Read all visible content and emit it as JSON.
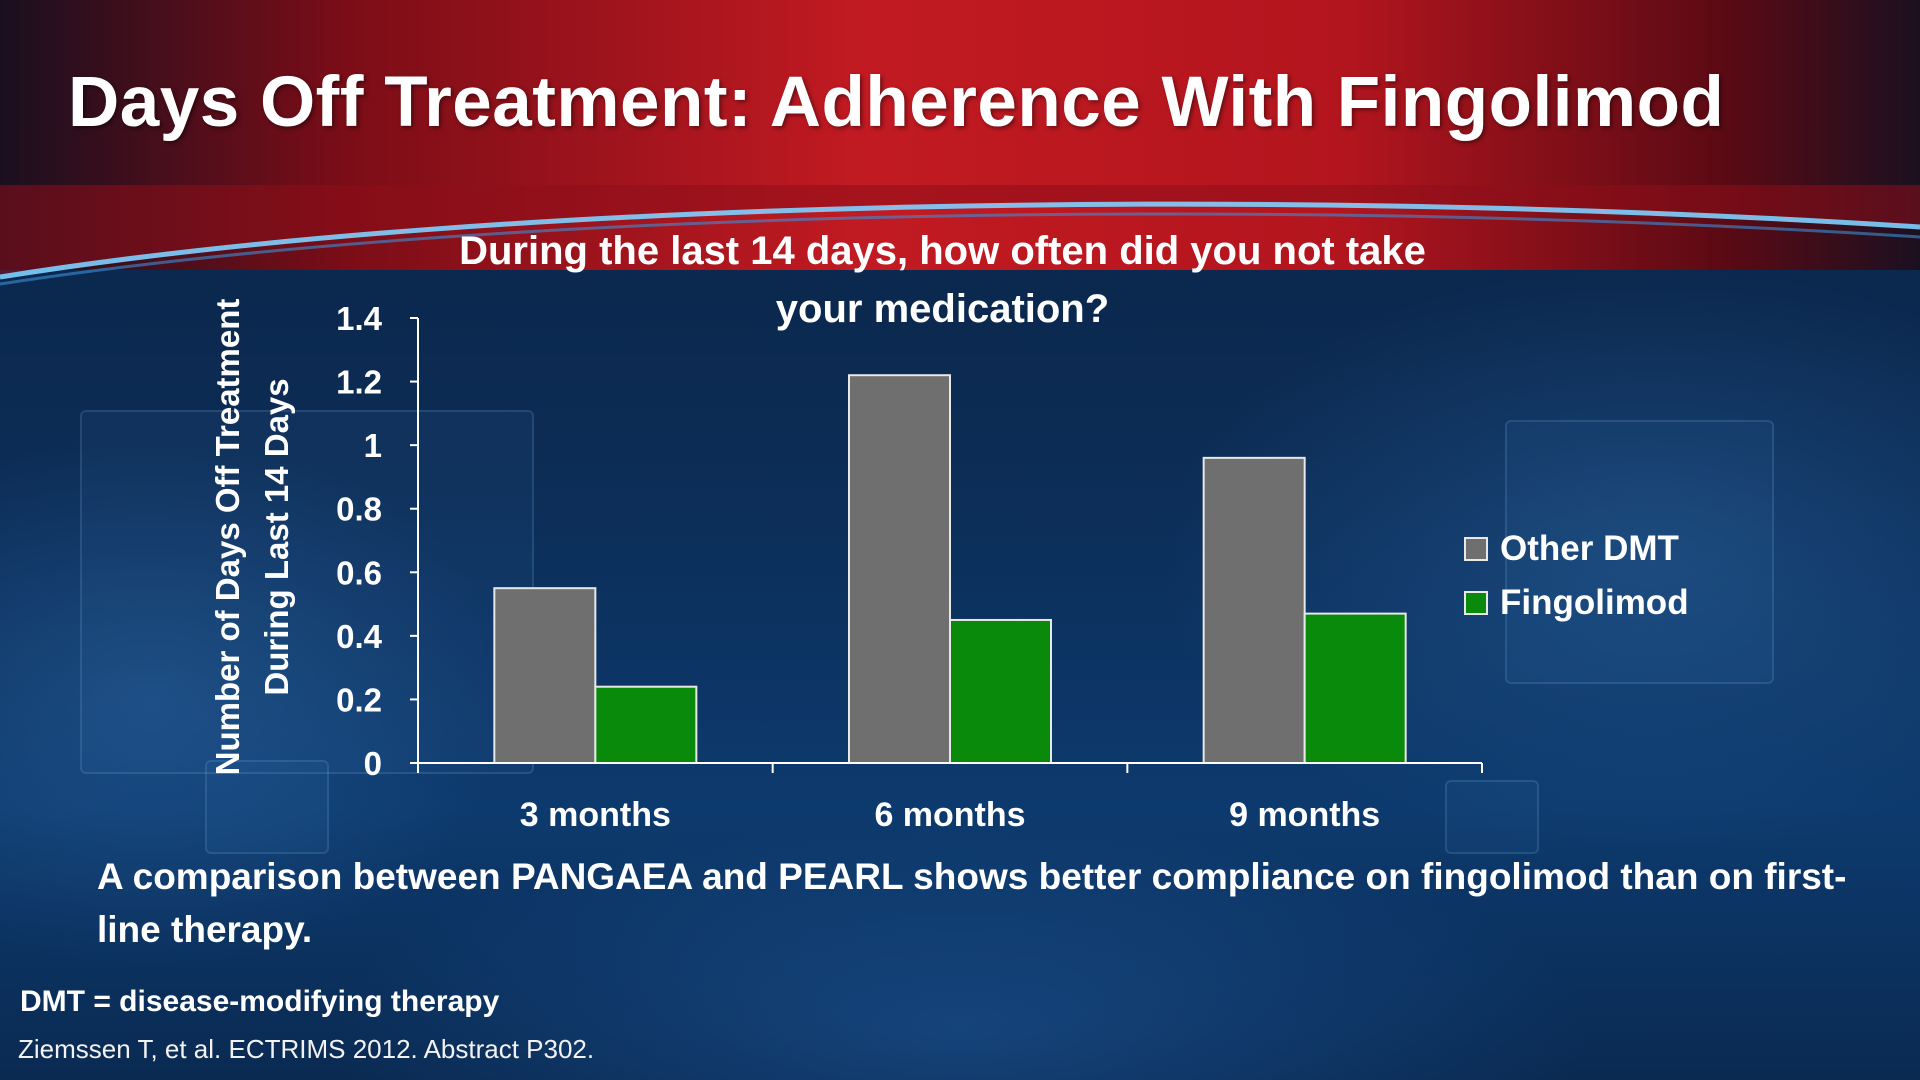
{
  "slide": {
    "title": "Days Off Treatment: Adherence With Fingolimod",
    "summary": "A comparison between PANGAEA and PEARL shows better compliance on fingolimod than on first-line therapy.",
    "footnote": "DMT = disease-modifying therapy",
    "citation": "Ziemssen T, et al. ECTRIMS 2012. Abstract P302."
  },
  "chart_data": {
    "type": "bar",
    "title": "During the last 14 days, how often did you not take your medication?",
    "ylabel_line1": "Number of Days Off Treatment",
    "ylabel_line2": "During Last 14 Days",
    "xlabel": "",
    "categories": [
      "3 months",
      "6 months",
      "9 months"
    ],
    "series": [
      {
        "name": "Other DMT",
        "color": "#6f6f6f",
        "values": [
          0.55,
          1.22,
          0.96
        ]
      },
      {
        "name": "Fingolimod",
        "color": "#0a8a0a",
        "values": [
          0.24,
          0.45,
          0.47
        ]
      }
    ],
    "yticks": [
      "0",
      "0.2",
      "0.4",
      "0.6",
      "0.8",
      "1",
      "1.2",
      "1.4"
    ],
    "ylim": [
      0,
      1.4
    ],
    "grid": false,
    "legend": "right"
  }
}
